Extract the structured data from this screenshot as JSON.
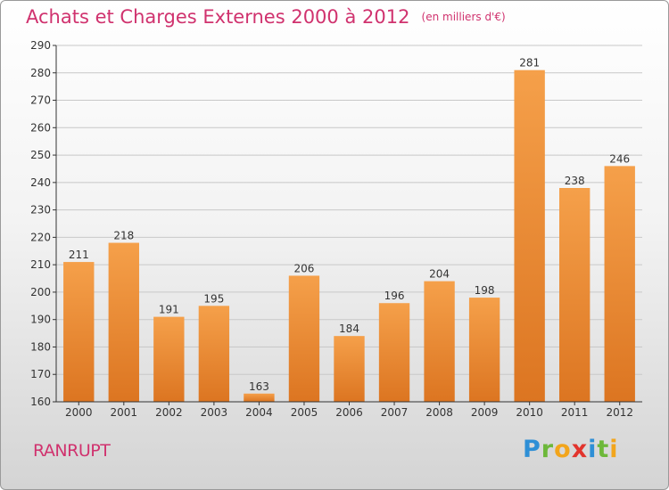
{
  "title": "Achats et Charges Externes 2000 à 2012",
  "subtitle": "(en milliers d'€)",
  "commune": "RANRUPT",
  "logo": {
    "letters": [
      {
        "ch": "P",
        "color": "#2e8fd6"
      },
      {
        "ch": "r",
        "color": "#6db83a"
      },
      {
        "ch": "o",
        "color": "#f2a51c"
      },
      {
        "ch": "x",
        "color": "#e2342d"
      },
      {
        "ch": "i",
        "color": "#2e8fd6"
      },
      {
        "ch": "t",
        "color": "#6db83a"
      },
      {
        "ch": "i",
        "color": "#f2a51c"
      }
    ]
  },
  "colors": {
    "title": "#d0326e",
    "bar_light": "#f5a04a",
    "bar_dark": "#dc7521",
    "axis": "#333333",
    "grid": "#c8c8c8"
  },
  "chart_data": {
    "type": "bar",
    "categories": [
      "2000",
      "2001",
      "2002",
      "2003",
      "2004",
      "2005",
      "2006",
      "2007",
      "2008",
      "2009",
      "2010",
      "2011",
      "2012"
    ],
    "values": [
      211,
      218,
      191,
      195,
      163,
      206,
      184,
      196,
      204,
      198,
      281,
      238,
      246
    ],
    "title": "Achats et Charges Externes 2000 à 2012",
    "subtitle": "(en milliers d'€)",
    "xlabel": "",
    "ylabel": "",
    "ylim": [
      160,
      290
    ],
    "yticks": [
      160,
      170,
      180,
      190,
      200,
      210,
      220,
      230,
      240,
      250,
      260,
      270,
      280,
      290
    ],
    "grid": true,
    "data_labels": true
  }
}
